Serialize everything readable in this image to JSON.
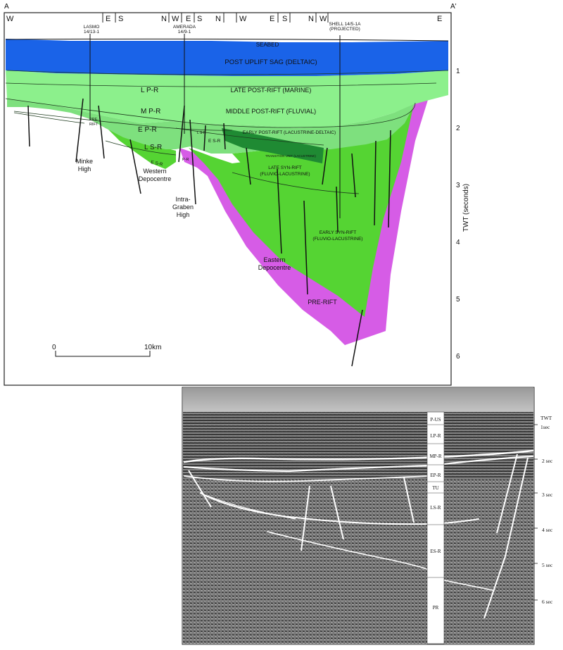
{
  "section": {
    "end_left": "A",
    "end_right": "A'",
    "directions": [
      "W",
      "E",
      "S",
      "N",
      "W",
      "E",
      "S",
      "N",
      "W",
      "E",
      "S",
      "N",
      "W",
      "E"
    ],
    "wells": {
      "lasmo": [
        "LASMO",
        "14/13-1"
      ],
      "amerada": [
        "AMERADA",
        "14/9-1"
      ],
      "shell": [
        "SHELL 14/5-1A",
        "(PROJECTED)"
      ]
    },
    "units": {
      "seabed": "SEABED",
      "post_uplift": "POST UPLIFT SAG (DELTAIC)",
      "late_post_rift": "LATE POST-RIFT (MARINE)",
      "middle_post_rift": "MIDDLE POST-RIFT (FLUVIAL)",
      "early_post_rift": "EARLY POST-RIFT (LACUSTRINE-DELTAIC)",
      "transition": "TRANSITION UNIT (LACUSTRINE)",
      "late_syn_rift": [
        "LATE SYN-RIFT",
        "(FLUVIO-LACUSTRINE)"
      ],
      "early_syn_rift": [
        "EARLY SYN-RIFT",
        "(FLUVIO-LACUSTRINE)"
      ],
      "pre_rift": "PRE-RIFT"
    },
    "short_labels": {
      "lpr": "L P-R",
      "mpr": "M P-R",
      "epr": "E P-R",
      "lsr": "L S-R",
      "esr": "E S-R",
      "pre_rift_small": [
        "PRE-",
        "RIFT"
      ],
      "pr_small": "P-R",
      "lsr_small": "L S-R",
      "esr_small": "E S-R"
    },
    "features": {
      "minke": [
        "Minke",
        "High"
      ],
      "western": [
        "Western",
        "Depocentre"
      ],
      "intra": [
        "Intra-",
        "Graben",
        "High"
      ],
      "eastern": [
        "Eastern",
        "Depocentre"
      ]
    },
    "axis": {
      "title": "TWT (seconds)",
      "ticks": [
        "1",
        "2",
        "3",
        "4",
        "5",
        "6"
      ]
    },
    "scale": {
      "start": "0",
      "end": "10km"
    },
    "colors": {
      "post_uplift": "#1a63e8",
      "post_rift": "#8cf08c",
      "early_post_rift": "#7ee07e",
      "syn_rift": "#55d433",
      "transition": "#1f8a33",
      "pre_rift": "#d65ce6"
    }
  },
  "seismic": {
    "units": [
      "P-US",
      "LP-R",
      "MP-R",
      "EP-R",
      "TU",
      "LS-R",
      "ES-R",
      "PR"
    ],
    "twt": {
      "title": "TWT",
      "ticks": [
        "1sec",
        "2 sec",
        "3 sec",
        "4 sec",
        "5 sec",
        "6 sec"
      ]
    }
  }
}
